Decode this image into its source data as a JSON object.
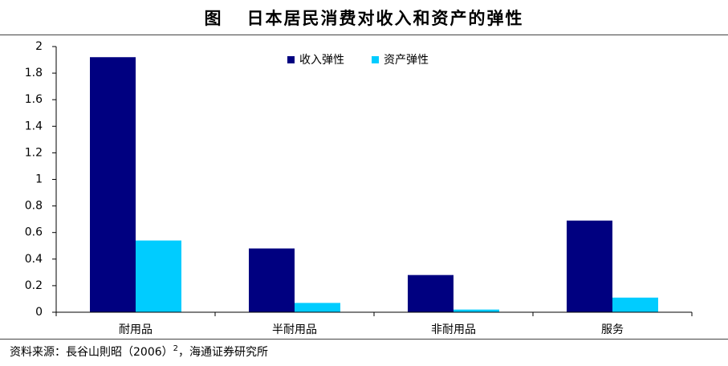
{
  "title": {
    "label": "图",
    "text": "日本居民消费对收入和资产的弹性"
  },
  "chart_data": {
    "type": "bar",
    "categories": [
      "耐用品",
      "半耐用品",
      "非耐用品",
      "服务"
    ],
    "series": [
      {
        "name": "收入弹性",
        "values": [
          1.92,
          0.48,
          0.28,
          0.69
        ],
        "color": "#000080"
      },
      {
        "name": "资产弹性",
        "values": [
          0.54,
          0.07,
          0.02,
          0.11
        ],
        "color": "#00CCFF"
      }
    ],
    "ylim": [
      0,
      2
    ],
    "yticks": [
      0,
      0.2,
      0.4,
      0.6,
      0.8,
      1,
      1.2,
      1.4,
      1.6,
      1.8,
      2
    ],
    "grid": false,
    "legend": "top-center"
  },
  "source": {
    "prefix": "资料来源：長谷山則昭（2006）",
    "sup": "2",
    "suffix": "，海通证券研究所"
  }
}
